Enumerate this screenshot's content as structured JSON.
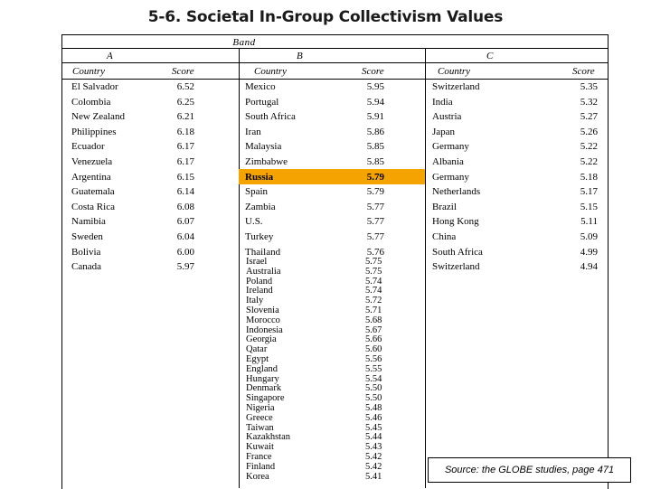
{
  "title": "5-6. Societal In-Group Collectivism Values",
  "band_label": "Band",
  "bands": {
    "a": "A",
    "b": "B",
    "c": "C"
  },
  "headers": {
    "country": "Country",
    "score": "Score"
  },
  "band_a_rows": [
    {
      "country": "El Salvador",
      "score": "6.52"
    },
    {
      "country": "Colombia",
      "score": "6.25"
    },
    {
      "country": "New Zealand",
      "score": "6.21"
    },
    {
      "country": "Philippines",
      "score": "6.18"
    },
    {
      "country": "Ecuador",
      "score": "6.17"
    },
    {
      "country": "Venezuela",
      "score": "6.17"
    },
    {
      "country": "Argentina",
      "score": "6.15"
    },
    {
      "country": "Guatemala",
      "score": "6.14"
    },
    {
      "country": "Costa Rica",
      "score": "6.08"
    },
    {
      "country": "Namibia",
      "score": "6.07"
    },
    {
      "country": "Sweden",
      "score": "6.04"
    },
    {
      "country": "Bolivia",
      "score": "6.00"
    },
    {
      "country": "Canada",
      "score": "5.97"
    }
  ],
  "band_b_rows": [
    {
      "country": "Mexico",
      "score": "5.95"
    },
    {
      "country": "Portugal",
      "score": "5.94"
    },
    {
      "country": "South Africa",
      "score": "5.91"
    },
    {
      "country": "Iran",
      "score": "5.86"
    },
    {
      "country": "Malaysia",
      "score": "5.85"
    },
    {
      "country": "Zimbabwe",
      "score": "5.85"
    },
    {
      "country": "Russia",
      "score": "5.79"
    },
    {
      "country": "Spain",
      "score": "5.79"
    },
    {
      "country": "Zambia",
      "score": "5.77"
    },
    {
      "country": "U.S.",
      "score": "5.77"
    },
    {
      "country": "Turkey",
      "score": "5.77"
    },
    {
      "country": "Thailand",
      "score": "5.76"
    }
  ],
  "band_b_dense": [
    {
      "country": "Israel",
      "score": "5.75"
    },
    {
      "country": "Australia",
      "score": "5.75"
    },
    {
      "country": "Poland",
      "score": "5.74"
    },
    {
      "country": "Ireland",
      "score": "5.74"
    },
    {
      "country": "Italy",
      "score": "5.72"
    },
    {
      "country": "Slovenia",
      "score": "5.71"
    },
    {
      "country": "Morocco",
      "score": "5.68"
    },
    {
      "country": "Indonesia",
      "score": "5.67"
    },
    {
      "country": "Georgia",
      "score": "5.66"
    },
    {
      "country": "Qatar",
      "score": "5.60"
    },
    {
      "country": "Egypt",
      "score": "5.56"
    },
    {
      "country": "England",
      "score": "5.55"
    },
    {
      "country": "Hungary",
      "score": "5.54"
    },
    {
      "country": "Denmark",
      "score": "5.50"
    },
    {
      "country": "Singapore",
      "score": "5.50"
    },
    {
      "country": "Nigeria",
      "score": "5.48"
    },
    {
      "country": "Greece",
      "score": "5.46"
    },
    {
      "country": "Taiwan",
      "score": "5.45"
    },
    {
      "country": "Kazakhstan",
      "score": "5.44"
    },
    {
      "country": "Kuwait",
      "score": "5.43"
    },
    {
      "country": "France",
      "score": "5.42"
    },
    {
      "country": "Finland",
      "score": "5.42"
    },
    {
      "country": "Korea",
      "score": "5.41"
    }
  ],
  "band_c_rows": [
    {
      "country": "Switzerland",
      "score": "5.35"
    },
    {
      "country": "India",
      "score": "5.32"
    },
    {
      "country": "Austria",
      "score": "5.27"
    },
    {
      "country": "Japan",
      "score": "5.26"
    },
    {
      "country": "Germany",
      "score": "5.22"
    },
    {
      "country": "Albania",
      "score": "5.22"
    },
    {
      "country": "Germany",
      "score": "5.18"
    },
    {
      "country": "Netherlands",
      "score": "5.17"
    },
    {
      "country": "Brazil",
      "score": "5.15"
    },
    {
      "country": "Hong Kong",
      "score": "5.11"
    },
    {
      "country": "China",
      "score": "5.09"
    },
    {
      "country": "South Africa",
      "score": "4.99"
    },
    {
      "country": "Switzerland",
      "score": "4.94"
    }
  ],
  "highlight_color": "#f5a300",
  "source": "Source: the GLOBE studies, page 471"
}
